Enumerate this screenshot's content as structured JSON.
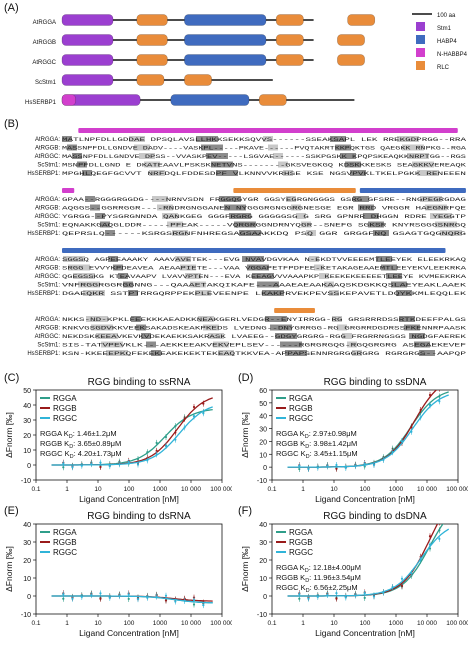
{
  "panels": {
    "A": "(A)",
    "B": "(B)",
    "C": "(C)",
    "D": "(D)",
    "E": "(E)",
    "F": "(F)"
  },
  "colors": {
    "stm1": "#9b3fd0",
    "habp4": "#3f6bbf",
    "nhabbp4": "#d23fcd",
    "rlc": "#e98c3a",
    "rgga": "#2f9e8a",
    "rggb": "#9a1b1b",
    "rggc": "#30b4d8"
  },
  "domain_map": {
    "proteins": [
      {
        "name": "AtRGGA",
        "len": 0.74,
        "domains": [
          {
            "t": "stm1",
            "s": 0.0,
            "e": 0.15
          },
          {
            "t": "rlc",
            "s": 0.22,
            "e": 0.31
          },
          {
            "t": "habp4",
            "s": 0.36,
            "e": 0.6
          },
          {
            "t": "rlc",
            "s": 0.63,
            "e": 0.71
          },
          {
            "t": "rlc",
            "s": 0.84,
            "e": 0.92
          }
        ]
      },
      {
        "name": "AtRGGB",
        "len": 0.74,
        "domains": [
          {
            "t": "stm1",
            "s": 0.0,
            "e": 0.15
          },
          {
            "t": "rlc",
            "s": 0.22,
            "e": 0.31
          },
          {
            "t": "habp4",
            "s": 0.36,
            "e": 0.6
          },
          {
            "t": "rlc",
            "s": 0.63,
            "e": 0.71
          },
          {
            "t": "rlc",
            "s": 0.81,
            "e": 0.89
          }
        ]
      },
      {
        "name": "AtRGGC",
        "len": 0.74,
        "domains": [
          {
            "t": "stm1",
            "s": 0.0,
            "e": 0.15
          },
          {
            "t": "rlc",
            "s": 0.22,
            "e": 0.31
          },
          {
            "t": "habp4",
            "s": 0.36,
            "e": 0.6
          },
          {
            "t": "rlc",
            "s": 0.63,
            "e": 0.71
          },
          {
            "t": "rlc",
            "s": 0.81,
            "e": 0.89
          }
        ]
      },
      {
        "name": "ScStm1",
        "len": 0.62,
        "domains": [
          {
            "t": "stm1",
            "s": 0.0,
            "e": 0.15
          },
          {
            "t": "rlc",
            "s": 0.22,
            "e": 0.3
          },
          {
            "t": "rlc",
            "s": 0.36,
            "e": 0.44
          }
        ]
      },
      {
        "name": "HsSERBP1",
        "len": 0.86,
        "domains": [
          {
            "t": "stm1",
            "s": 0.0,
            "e": 0.23
          },
          {
            "t": "nhabbp4",
            "s": 0.0,
            "e": 0.04
          },
          {
            "t": "habp4",
            "s": 0.32,
            "e": 0.55
          },
          {
            "t": "rlc",
            "s": 0.58,
            "e": 0.66
          }
        ]
      }
    ],
    "legend": [
      {
        "label": "100 aa",
        "key": "scale"
      },
      {
        "label": "Stm1",
        "key": "stm1"
      },
      {
        "label": "HABP4",
        "key": "habp4"
      },
      {
        "label": "N-HABBP4",
        "key": "nhabbp4"
      },
      {
        "label": "RLC",
        "key": "rlc"
      }
    ]
  },
  "alignment": {
    "blocks": [
      {
        "bars": [
          {
            "t": "nhabbp4",
            "s": 0.04,
            "e": 0.97
          }
        ],
        "rows": [
          {
            "name": "AtRGGA:",
            "seq": "MATLNPFDLLGDDAE DPSQLAVSLLHKKSEKKSQVVS------SSEAKSAPL LEK RREKGDPRGG--RRA"
          },
          {
            "name": "AtRGGB:",
            "seq": "MASSNPFDLLGNDVE DADV----VASKPL-----PKAVE------PVQTAKRTKKPQKTGS QAEGKK RNPKG--RGA"
          },
          {
            "name": "AtRGGC:",
            "seq": "MASSNPFDLLGNDVE DPSS--VVASKPEV-----LSGVAE------SSKPGSKK KPQPSKEAQKKNRPTGG--RGS"
          },
          {
            "name": "ScStm1:",
            "seq": "MSNPFDLLGND  E DKATEAAVLPSKSKNETVNS--------GKSVEGKGQ KDSKKKESKS SEAGKKVEREAQK"
          },
          {
            "name": "HsSERBP1:",
            "seq": "MPGHLQEGFGCVVT NRFDQLFDDESDPF VLKNNVVKRHSE KSE NGSVPVKLTKELPGKK RENEEEN"
          }
        ]
      },
      {
        "bars": [
          {
            "t": "nhabbp4",
            "s": 0.0,
            "e": 0.03
          },
          {
            "t": "rlc",
            "s": 0.42,
            "e": 0.72
          },
          {
            "t": "habp4",
            "s": 0.73,
            "e": 0.99
          }
        ],
        "rows": [
          {
            "name": "AtRGGA:",
            "seq": "GPAA--RGGGRGGDG----NRNVSDN FRGGQGYGR GGSYEGRGNGGGS GSRG GFSRE--RNGPEGRGDAG"
          },
          {
            "name": "AtRGGB:",
            "seq": "AQGGS--GGRRGGR----RNDRGNGGANEN NYGGGRGNGGRGNESGE EGR RRD VRGGR HAEGNRFQE"
          },
          {
            "name": "AtRGGC:",
            "seq": "YGRGG--PYSGRGNNDA QANKGEG GGGFRGRG GGGGGSG G SRG GPNRR DHGGN RDRE YEGGTP"
          },
          {
            "name": "ScStm1:",
            "seq": "EQNAKKGAQGLDDR-----PFEAK-----VQRGRGGNDRNYQGR--SNEFG SGKSR KNYRSGGGSNRGQ"
          },
          {
            "name": "HsSERBP1:",
            "seq": "QEPRSLQ------KSRGSRGNFNHREGSAGSAAKKDQ PSQ GGR GRGGFNQ GSAGTGQGNQRG"
          }
        ]
      },
      {
        "bars": [
          {
            "t": "habp4",
            "s": 0.0,
            "e": 0.94
          }
        ],
        "rows": [
          {
            "name": "AtRGGA:",
            "seq": "SGGSQ AGPEEAAAKY AAAVAVETEK---EVG NVAVDGVKAA N-EKDTVVEEEEMTLEEYEK ELEEKRKAQ"
          },
          {
            "name": "AtRGGB:",
            "seq": "SRGG EVVYKPDEAVEA AEAAPIETE---VAA VGGAPETFPDFEE-KETAKAGEAAEMTLEEYEKVLEEKRKA"
          },
          {
            "name": "AtRGGC:",
            "seq": "QGEGSSKG KTEAVAAPV LVAVVPTEN---EVA KEEAGVVVAAAPKP KEEKEKEEEEETLEEYE KVMEEKRKA"
          },
          {
            "name": "ScStm1:",
            "seq": "VNFRGGRGGRGGNNG---QAAAETAKQIKAFE---AAAEAEAAKAAQSKDGKKQSLAEYEAKLAAEK"
          },
          {
            "name": "HsSERBP1:",
            "seq": "DGAEQKR SSTPTRRGQRPPEKPLEVEENPE LKAKPRVEKPEVSSKEPAVETLDQYKKMLEQQLEK"
          }
        ]
      },
      {
        "bars": [
          {
            "t": "rlc",
            "s": 0.52,
            "e": 0.62
          }
        ],
        "rows": [
          {
            "name": "AtRGGA:",
            "seq": "NKKS-ND-KPKLFEEKKKAEADKKNEAKGERLVEDGR--ENYIRRGG-RG GRSRRRDSSRTKDEEFPALGS"
          },
          {
            "name": "AtRGGB:",
            "seq": "KNKVGSGDVKKVEEKSAKADSKEAKPKEDS LVEDNG--DNYGRRGG-RG GRGRRDGDRSSFKENNRPAASK"
          },
          {
            "name": "AtRGGC:",
            "seq": "NEKDSKKEEAVKEVKVDEKAEKKSAKRASK LVAEEG--GDGYGRGRG-RGG FRGRRNGSGS NGDGFAEREK"
          },
          {
            "name": "ScStm1:",
            "seq": "SIS-TATVPEVKLK---AEKKEEAKVEKVEPLSEV------RGRGRGQG-RGQGRGRG ASEGAEKEVEF"
          },
          {
            "name": "HsSERBP1:",
            "seq": "KSN-KKEEEPKQFEKEKEAKEKEKTEKEAQTKKVEA-APPAPSENNRGRGGRGRG RGRGRGS--AAPQP"
          }
        ]
      }
    ]
  },
  "chart_data": [
    {
      "type": "line",
      "panel": "C",
      "title": "RGG binding to ssRNA",
      "xlabel": "Ligand Concentration [nM]",
      "ylabel": "ΔFnorm [‰]",
      "xscale": "log",
      "xlim": [
        0.1,
        100000
      ],
      "ylim": [
        -10,
        50
      ],
      "xticks": [
        0.1,
        1,
        10,
        100,
        1000,
        10000,
        100000
      ],
      "xticklabels": [
        "0.1",
        "1",
        "10",
        "100",
        "1000",
        "10 000",
        "100 000"
      ],
      "yticks": [
        -10,
        0,
        10,
        20,
        30,
        40,
        50
      ],
      "legend": [
        "RGGA",
        "RGGB",
        "RGGC"
      ],
      "kd_labels": [
        "RGGA K_D: 1.46±1.2μM",
        "RGGB K_D: 3.65±0.89μM",
        "RGGC K_D: 4.20±1.73μM"
      ],
      "series": [
        {
          "name": "RGGA",
          "key": "rgga",
          "kd": 1460,
          "amp": 38
        },
        {
          "name": "RGGB",
          "key": "rggb",
          "kd": 3650,
          "amp": 48
        },
        {
          "name": "RGGC",
          "key": "rggc",
          "kd": 4200,
          "amp": 42
        }
      ],
      "points": [
        0.76,
        1.5,
        3,
        6.1,
        12,
        24,
        49,
        98,
        195,
        390,
        780,
        1560,
        3125,
        6250,
        12500,
        25000
      ]
    },
    {
      "type": "line",
      "panel": "D",
      "title": "RGG binding to ssDNA",
      "xlabel": "Ligand Concentration [nM]",
      "ylabel": "ΔFnorm [‰]",
      "xscale": "log",
      "xlim": [
        0.1,
        100000
      ],
      "ylim": [
        -10,
        60
      ],
      "xticks": [
        0.1,
        1,
        10,
        100,
        1000,
        10000,
        100000
      ],
      "xticklabels": [
        "0.1",
        "1",
        "10",
        "100",
        "1000",
        "10 000",
        "100 000"
      ],
      "yticks": [
        -10,
        0,
        10,
        20,
        30,
        40,
        50,
        60
      ],
      "legend": [
        "RGGA",
        "RGGB",
        "RGGC"
      ],
      "kd_labels": [
        "RGGA K_D: 2.97±0.98μM",
        "RGGB K_D: 3.98±1.42μM",
        "RGGC K_D: 3.45±1.15μM"
      ],
      "series": [
        {
          "name": "RGGA",
          "key": "rgga",
          "kd": 2970,
          "amp": 62
        },
        {
          "name": "RGGB",
          "key": "rggb",
          "kd": 3980,
          "amp": 72
        },
        {
          "name": "RGGC",
          "key": "rggc",
          "kd": 3450,
          "amp": 60
        }
      ],
      "points": [
        0.76,
        1.5,
        3,
        6.1,
        12,
        24,
        49,
        98,
        195,
        390,
        780,
        1560,
        3125,
        6250,
        12500,
        25000
      ]
    },
    {
      "type": "line",
      "panel": "E",
      "title": "RGG binding to dsRNA",
      "xlabel": "Ligand Concentration [nM]",
      "ylabel": "ΔFnorm [‰]",
      "xscale": "log",
      "xlim": [
        0.1,
        100000
      ],
      "ylim": [
        -10,
        40
      ],
      "xticks": [
        0.1,
        1,
        10,
        100,
        1000,
        10000,
        100000
      ],
      "xticklabels": [
        "0.1",
        "1",
        "10",
        "100",
        "1000",
        "10 000",
        "100 000"
      ],
      "yticks": [
        -10,
        0,
        10,
        20,
        30,
        40
      ],
      "legend": [
        "RGGA",
        "RGGB",
        "RGGC"
      ],
      "kd_labels": [],
      "series": [
        {
          "name": "RGGA",
          "key": "rgga",
          "kd": 3000,
          "amp": -4
        },
        {
          "name": "RGGB",
          "key": "rggb",
          "kd": 3000,
          "amp": -3
        },
        {
          "name": "RGGC",
          "key": "rggc",
          "kd": 3000,
          "amp": -4
        }
      ],
      "points": [
        0.76,
        1.5,
        3,
        6.1,
        12,
        24,
        49,
        98,
        195,
        390,
        780,
        1560,
        3125,
        6250,
        12500,
        25000
      ]
    },
    {
      "type": "line",
      "panel": "F",
      "title": "RGG binding to dsDNA",
      "xlabel": "Ligand Concentration [nM]",
      "ylabel": "ΔFnorm [‰]",
      "xscale": "log",
      "xlim": [
        0.1,
        100000
      ],
      "ylim": [
        -10,
        40
      ],
      "xticks": [
        0.1,
        1,
        10,
        100,
        1000,
        10000,
        100000
      ],
      "xticklabels": [
        "0.1",
        "1",
        "10",
        "100",
        "1000",
        "10 000",
        "100 000"
      ],
      "yticks": [
        -10,
        0,
        10,
        20,
        30,
        40
      ],
      "legend": [
        "RGGA",
        "RGGB",
        "RGGC"
      ],
      "kd_labels": [
        "RGGA K_D: 12.18±4.00μM",
        "RGGB K_D: 11.96±3.54μM",
        "RGGC K_D: 6.56±2.25μM"
      ],
      "series": [
        {
          "name": "RGGA",
          "key": "rgga",
          "kd": 12180,
          "amp": 55
        },
        {
          "name": "RGGB",
          "key": "rggb",
          "kd": 11960,
          "amp": 62
        },
        {
          "name": "RGGC",
          "key": "rggc",
          "kd": 6560,
          "amp": 42
        }
      ],
      "points": [
        0.76,
        1.5,
        3,
        6.1,
        12,
        24,
        49,
        98,
        195,
        390,
        780,
        1560,
        3125,
        6250,
        12500,
        25000
      ]
    }
  ]
}
